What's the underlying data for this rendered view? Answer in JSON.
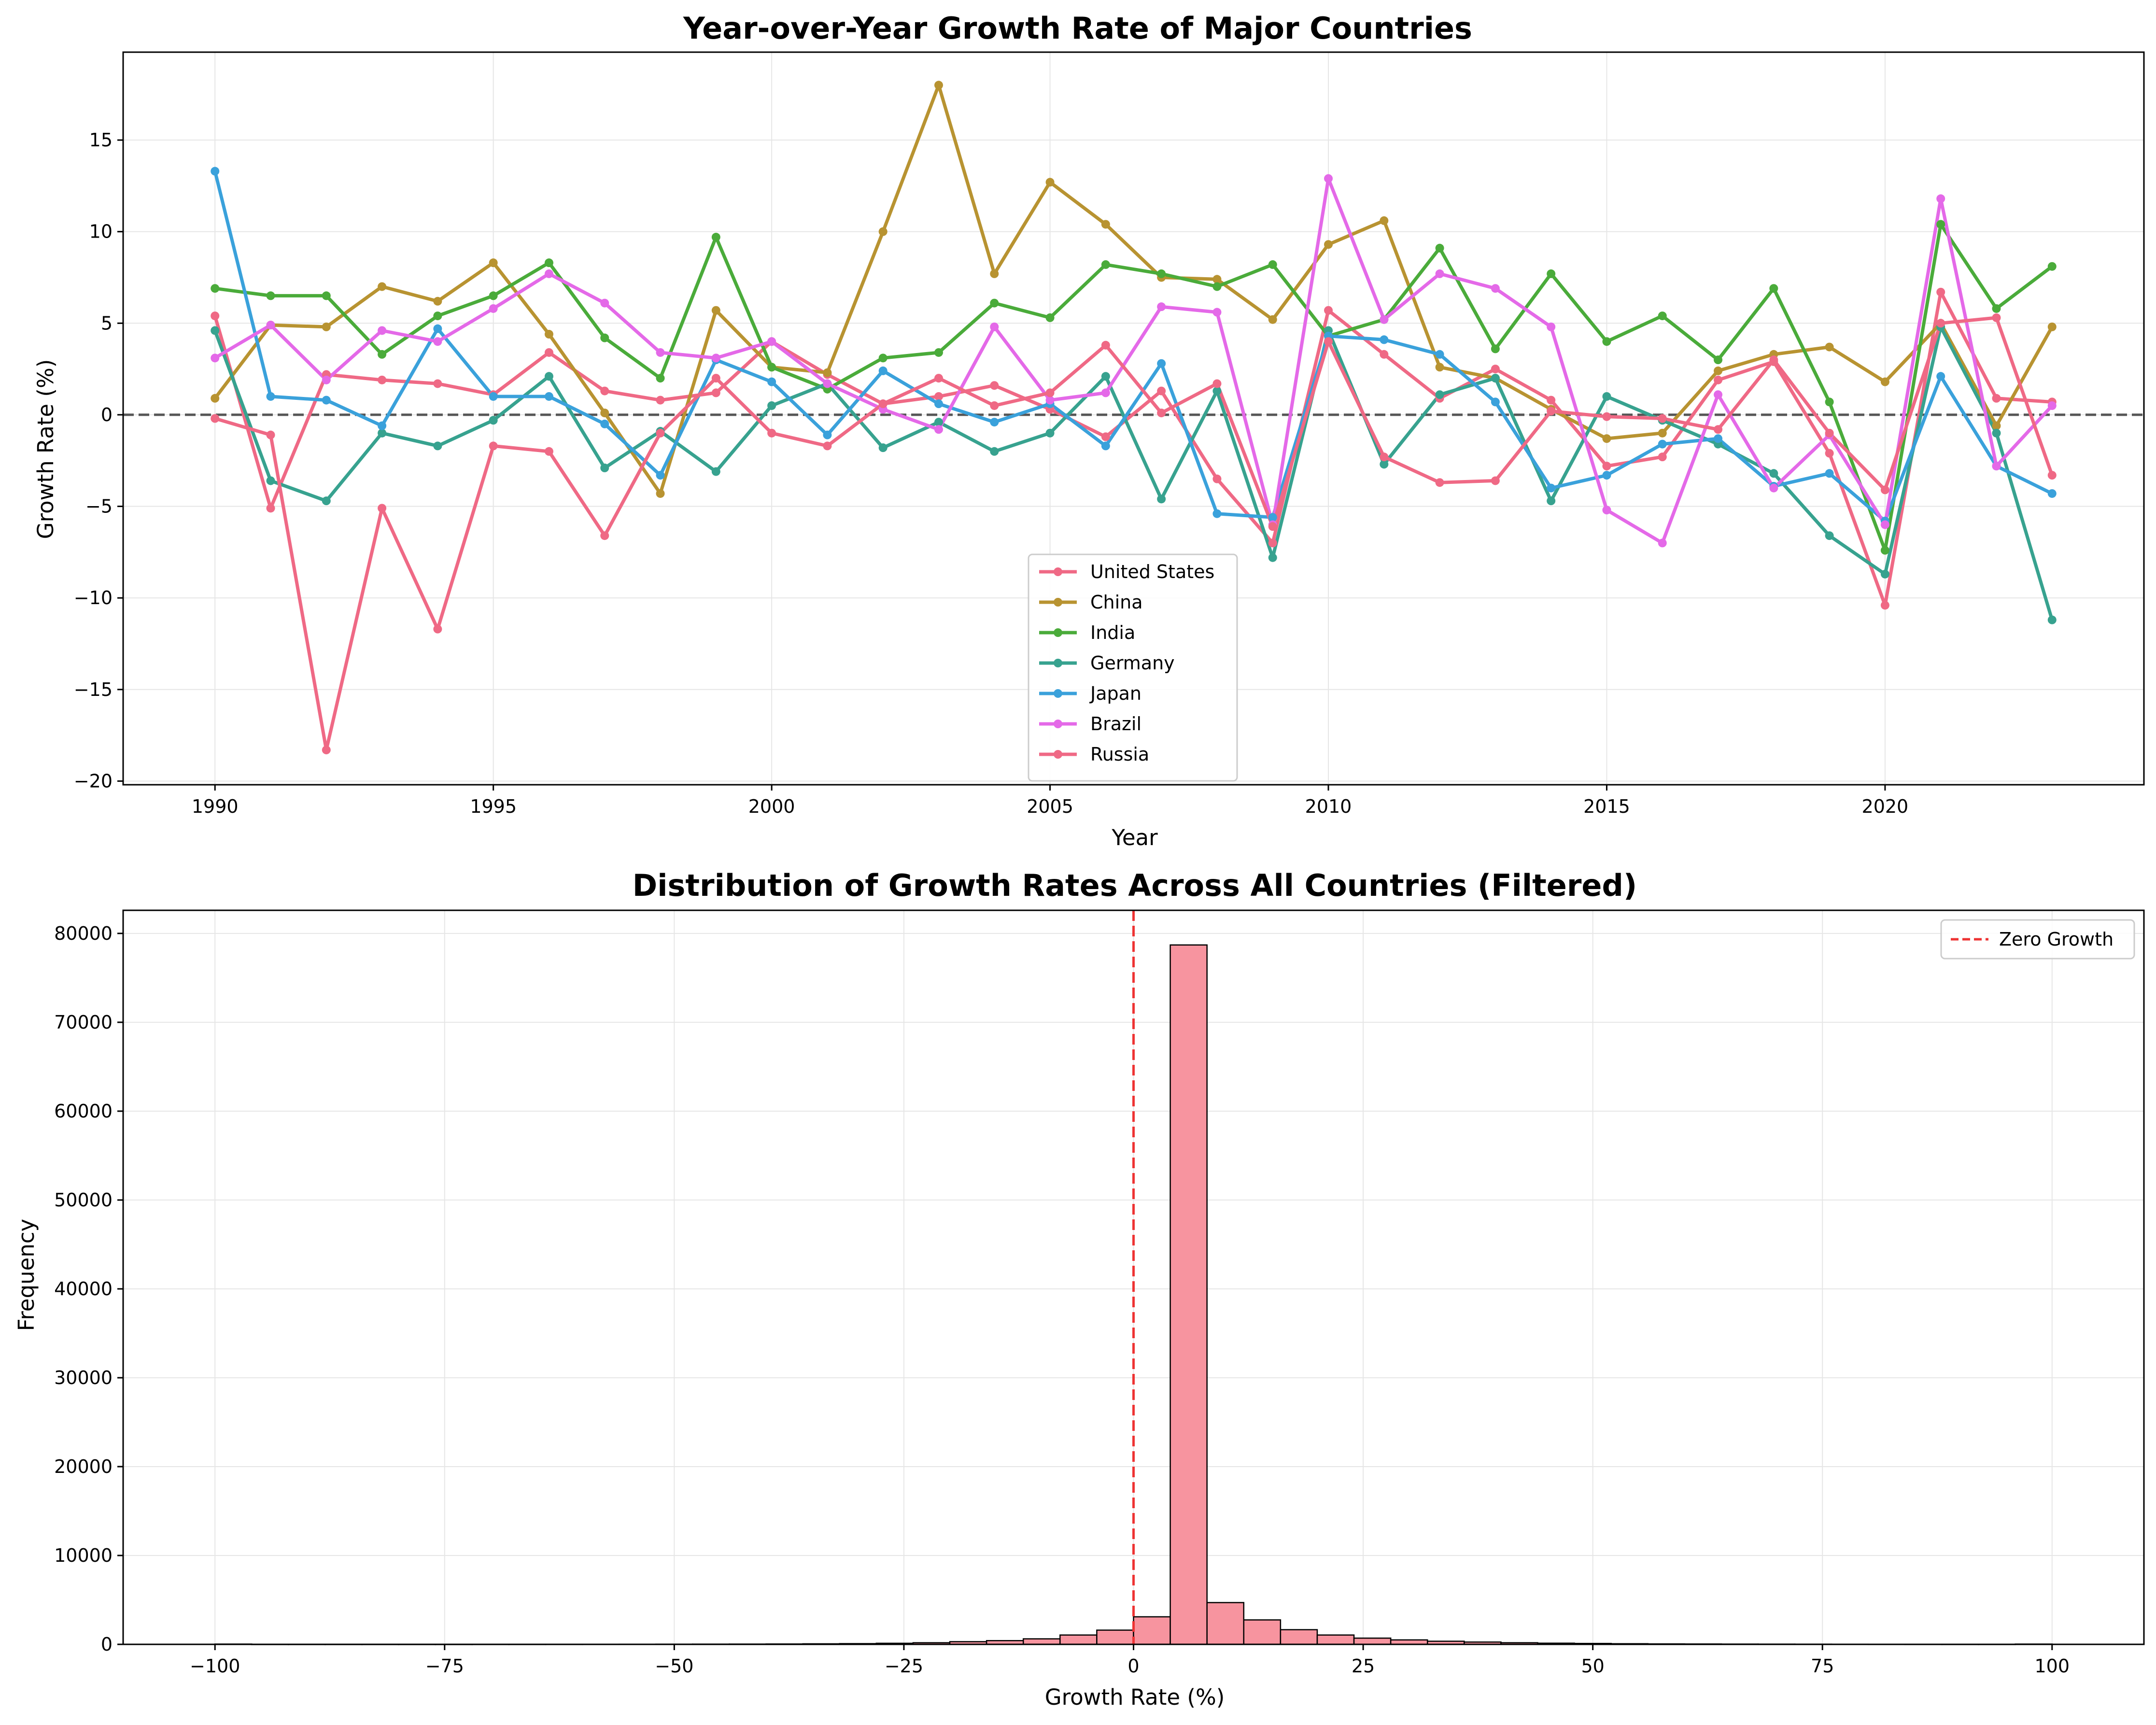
{
  "chart_data": [
    {
      "type": "line",
      "title": "Year-over-Year Growth Rate of Major Countries",
      "xlabel": "Year",
      "ylabel": "Growth Rate (%)",
      "xlim": [
        1988.35,
        2024.65
      ],
      "ylim": [
        -20.2,
        19.8
      ],
      "xticks": [
        1990,
        1995,
        2000,
        2005,
        2010,
        2015,
        2020
      ],
      "yticks": [
        -20,
        -15,
        -10,
        -5,
        0,
        5,
        10,
        15
      ],
      "grid": true,
      "legend_position": "lower center",
      "reference_line": {
        "y": 0,
        "style": "dashed",
        "color": "#555555"
      },
      "x": [
        1990,
        1991,
        1992,
        1993,
        1994,
        1995,
        1996,
        1997,
        1998,
        1999,
        2000,
        2001,
        2002,
        2003,
        2004,
        2005,
        2006,
        2007,
        2008,
        2009,
        2010,
        2011,
        2012,
        2013,
        2014,
        2015,
        2016,
        2017,
        2018,
        2019,
        2020,
        2021,
        2022,
        2023
      ],
      "series": [
        {
          "name": "United States",
          "color": "#ef6985",
          "values": [
            5.4,
            -5.1,
            2.2,
            1.9,
            1.7,
            1.1,
            3.4,
            1.3,
            0.8,
            1.2,
            4.0,
            2.2,
            0.6,
            1.0,
            1.6,
            0.3,
            -1.2,
            1.3,
            -3.5,
            -7.0,
            5.7,
            3.3,
            0.9,
            2.5,
            0.8,
            -2.8,
            -2.3,
            1.9,
            2.9,
            -2.1,
            -10.4,
            6.7,
            0.9,
            0.7
          ]
        },
        {
          "name": "China",
          "color": "#b89331",
          "values": [
            0.9,
            4.9,
            4.8,
            7.0,
            6.2,
            8.3,
            4.4,
            0.1,
            -4.3,
            5.7,
            2.6,
            2.3,
            10.0,
            18.0,
            7.7,
            12.7,
            10.4,
            7.5,
            7.4,
            5.2,
            9.3,
            10.6,
            2.6,
            2.0,
            0.3,
            -1.3,
            -1.0,
            2.4,
            3.3,
            3.7,
            1.8,
            5.0,
            -0.6,
            4.8
          ]
        },
        {
          "name": "India",
          "color": "#4aab3a",
          "values": [
            6.9,
            6.5,
            6.5,
            3.3,
            5.4,
            6.5,
            8.3,
            4.2,
            2.0,
            9.7,
            2.6,
            1.4,
            3.1,
            3.4,
            6.1,
            5.3,
            8.2,
            7.7,
            7.0,
            8.2,
            4.3,
            5.2,
            9.1,
            3.6,
            7.7,
            4.0,
            5.4,
            3.0,
            6.9,
            0.7,
            -7.4,
            10.4,
            5.8,
            8.1
          ]
        },
        {
          "name": "Germany",
          "color": "#37a28f",
          "values": [
            4.6,
            -3.6,
            -4.7,
            -1.0,
            -1.7,
            -0.3,
            2.1,
            -2.9,
            -0.9,
            -3.1,
            0.5,
            1.7,
            -1.8,
            -0.4,
            -2.0,
            -1.0,
            2.1,
            -4.6,
            1.3,
            -7.8,
            4.6,
            -2.7,
            1.1,
            2.0,
            -4.7,
            1.0,
            -0.3,
            -1.6,
            -3.2,
            -6.6,
            -8.7,
            4.8,
            -1.0,
            -11.2
          ]
        },
        {
          "name": "Japan",
          "color": "#3aa1db",
          "values": [
            13.3,
            1.0,
            0.8,
            -0.6,
            4.7,
            1.0,
            1.0,
            -0.5,
            -3.3,
            3.0,
            1.8,
            -1.1,
            2.4,
            0.6,
            -0.4,
            0.6,
            -1.7,
            2.8,
            -5.4,
            -5.6,
            4.3,
            4.1,
            3.3,
            0.7,
            -4.0,
            -3.3,
            -1.6,
            -1.3,
            -3.9,
            -3.2,
            -5.8,
            2.1,
            -2.8,
            -4.3
          ]
        },
        {
          "name": "Brazil",
          "color": "#e469e8",
          "values": [
            3.1,
            4.9,
            1.9,
            4.6,
            4.0,
            5.8,
            7.7,
            6.1,
            3.4,
            3.1,
            4.0,
            1.7,
            0.3,
            -0.8,
            4.8,
            0.8,
            1.2,
            5.9,
            5.6,
            -6.0,
            12.9,
            5.2,
            7.7,
            6.9,
            4.8,
            -5.2,
            -7.0,
            1.1,
            -4.0,
            -1.1,
            -6.0,
            11.8,
            -2.8,
            0.5
          ]
        },
        {
          "name": "Russia",
          "color": "#ef6985",
          "values": [
            -0.2,
            -1.1,
            -18.3,
            -5.1,
            -11.7,
            -1.7,
            -2.0,
            -6.6,
            -1.0,
            2.0,
            -1.0,
            -1.7,
            0.6,
            2.0,
            0.5,
            1.2,
            3.8,
            0.1,
            1.7,
            -6.1,
            4.0,
            -2.3,
            -3.7,
            -3.6,
            0.2,
            -0.1,
            -0.2,
            -0.8,
            3.0,
            -1.0,
            -4.1,
            5.0,
            5.3,
            -3.3
          ]
        }
      ]
    },
    {
      "type": "bar",
      "title": "Distribution of Growth Rates Across All Countries (Filtered)",
      "xlabel": "Growth Rate (%)",
      "ylabel": "Frequency",
      "xlim": [
        -110,
        110
      ],
      "ylim": [
        0,
        82600
      ],
      "xticks": [
        -100,
        -75,
        -50,
        -25,
        0,
        25,
        50,
        75,
        100
      ],
      "yticks": [
        0,
        10000,
        20000,
        30000,
        40000,
        50000,
        60000,
        70000,
        80000
      ],
      "grid": true,
      "legend_position": "upper right",
      "bar_color": "#f7949f",
      "bin_edges": [
        -100,
        -96,
        -92,
        -88,
        -84,
        -80,
        -76,
        -72,
        -68,
        -64,
        -60,
        -56,
        -52,
        -48,
        -44,
        -40,
        -36,
        -32,
        -28,
        -24,
        -20,
        -16,
        -12,
        -8,
        -4,
        0,
        4,
        8,
        12,
        16,
        20,
        24,
        28,
        32,
        36,
        40,
        44,
        48,
        52,
        56,
        60,
        64,
        68,
        72,
        76,
        80,
        84,
        88,
        92,
        96,
        100
      ],
      "values": [
        30,
        5,
        5,
        5,
        5,
        5,
        5,
        8,
        8,
        10,
        12,
        15,
        20,
        25,
        30,
        40,
        60,
        80,
        120,
        180,
        300,
        420,
        620,
        1050,
        1600,
        3100,
        78700,
        4700,
        2750,
        1650,
        1050,
        700,
        500,
        350,
        260,
        180,
        130,
        100,
        70,
        50,
        40,
        30,
        25,
        20,
        15,
        12,
        10,
        8,
        8,
        30
      ],
      "reference_line": {
        "x": 0,
        "label": "Zero Growth",
        "style": "dashed",
        "color": "#ee3333"
      }
    }
  ]
}
